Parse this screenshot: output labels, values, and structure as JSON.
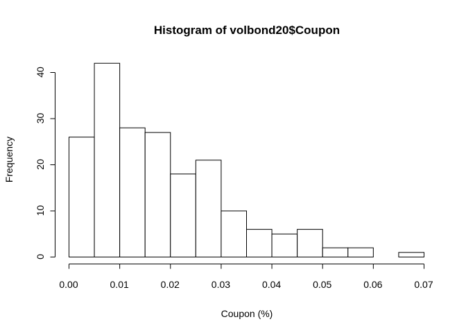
{
  "chart_data": {
    "type": "histogram",
    "title": "Histogram of volbond20$Coupon",
    "xlabel": "Coupon (%)",
    "ylabel": "Frequency",
    "bin_edges": [
      0.0,
      0.005,
      0.01,
      0.015,
      0.02,
      0.025,
      0.03,
      0.035,
      0.04,
      0.045,
      0.05,
      0.055,
      0.06,
      0.065,
      0.07
    ],
    "values": [
      26,
      42,
      28,
      27,
      18,
      21,
      10,
      6,
      5,
      6,
      2,
      2,
      0,
      1
    ],
    "xlim": [
      0.0,
      0.07
    ],
    "ylim": [
      0,
      42
    ],
    "xticks": [
      0.0,
      0.01,
      0.02,
      0.03,
      0.04,
      0.05,
      0.06,
      0.07
    ],
    "xtick_labels": [
      "0.00",
      "0.01",
      "0.02",
      "0.03",
      "0.04",
      "0.05",
      "0.06",
      "0.07"
    ],
    "yticks": [
      0,
      10,
      20,
      30,
      40
    ],
    "ytick_labels": [
      "0",
      "10",
      "20",
      "30",
      "40"
    ],
    "grid": false,
    "colors": {
      "bar_fill": "#ffffff",
      "bar_stroke": "#000000"
    }
  }
}
